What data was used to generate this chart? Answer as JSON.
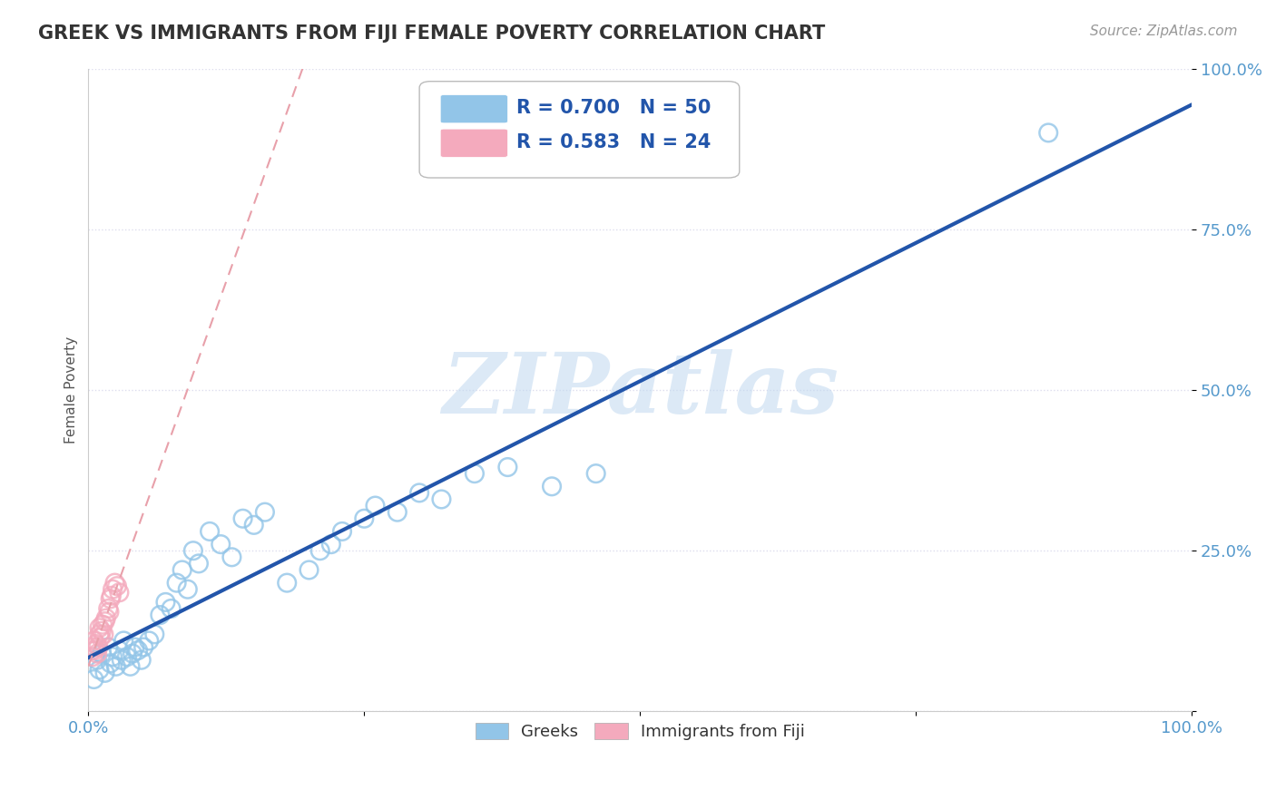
{
  "title": "GREEK VS IMMIGRANTS FROM FIJI FEMALE POVERTY CORRELATION CHART",
  "source_text": "Source: ZipAtlas.com",
  "ylabel": "Female Poverty",
  "watermark": "ZIPatlas",
  "greek_color": "#92C5E8",
  "greek_edge_color": "#6AAAD4",
  "fiji_color": "#F4AABD",
  "fiji_edge_color": "#E08090",
  "greek_line_color": "#2255AA",
  "fiji_line_color": "#E8A0AA",
  "legend_R_greek": "0.700",
  "legend_N_greek": "50",
  "legend_R_fiji": "0.583",
  "legend_N_fiji": "24",
  "background_color": "#FFFFFF",
  "grid_color": "#DDDDEE",
  "tick_color": "#5599CC",
  "title_color": "#333333",
  "source_color": "#999999"
}
